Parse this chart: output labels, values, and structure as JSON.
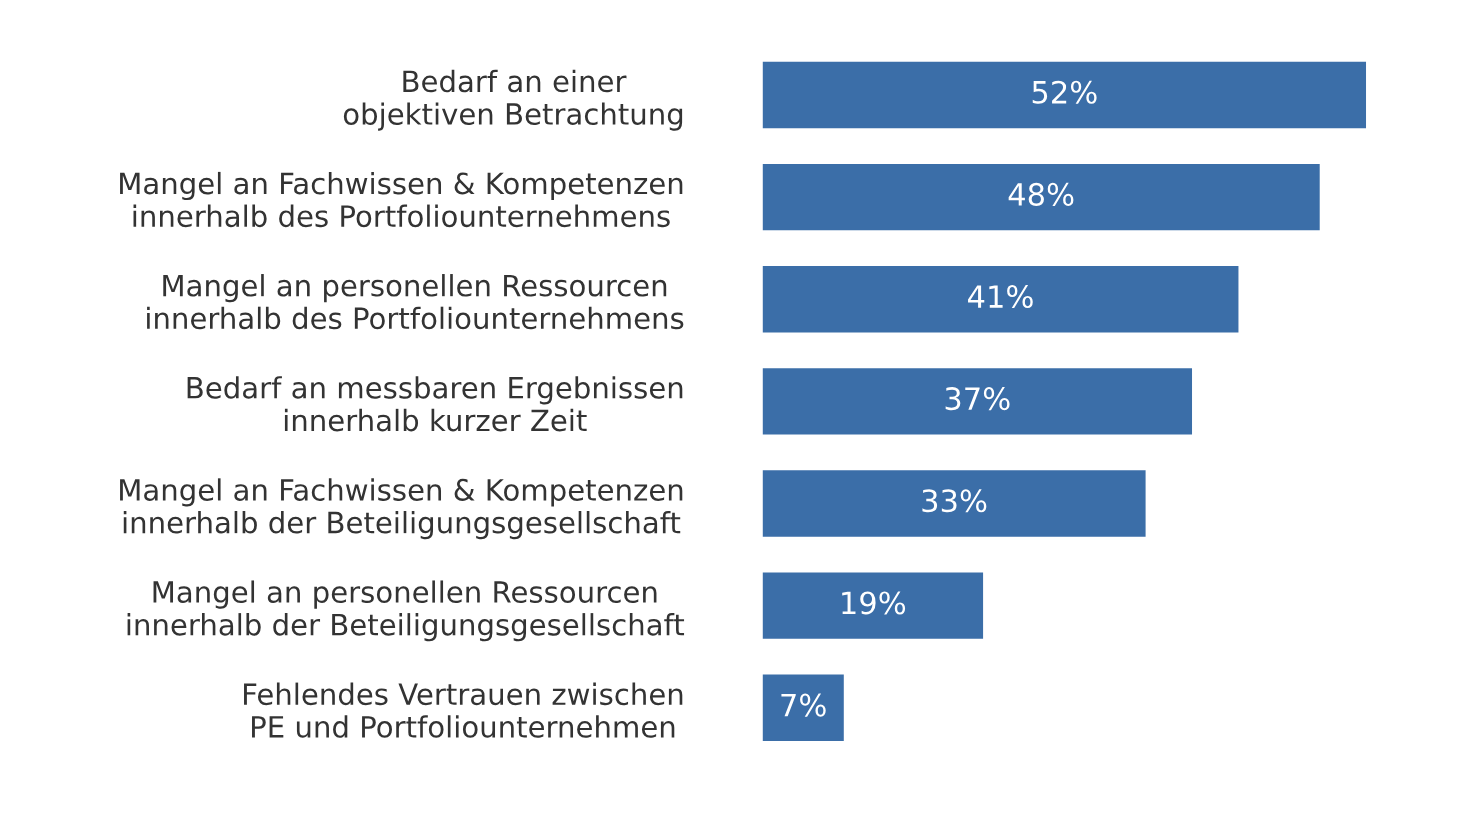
{
  "chart_data": {
    "type": "bar",
    "orientation": "horizontal",
    "categories": [
      "Bedarf an einer\nobjektiven Betrachtung",
      "Mangel an Fachwissen & Kompetenzen\ninnerhalb des Portfoliounternehmens",
      "Mangel an personellen Ressourcen\ninnerhalb des Portfoliounternehmens",
      "Bedarf an messbaren Ergebnissen\ninnerhalb kurzer Zeit",
      "Mangel an Fachwissen & Kompetenzen\ninnerhalb der Beteiligungsgesellschaft",
      "Mangel an personellen Ressourcen\ninnerhalb der Beteiligungsgesellschaft",
      "Fehlendes Vertrauen zwischen\nPE und Portfoliounternehmen"
    ],
    "values": [
      52,
      48,
      41,
      37,
      33,
      19,
      7
    ],
    "value_labels": [
      "52%",
      "48%",
      "41%",
      "37%",
      "33%",
      "19%",
      "7%"
    ],
    "color": "#3b6ea8",
    "grid": false,
    "legend": false
  }
}
